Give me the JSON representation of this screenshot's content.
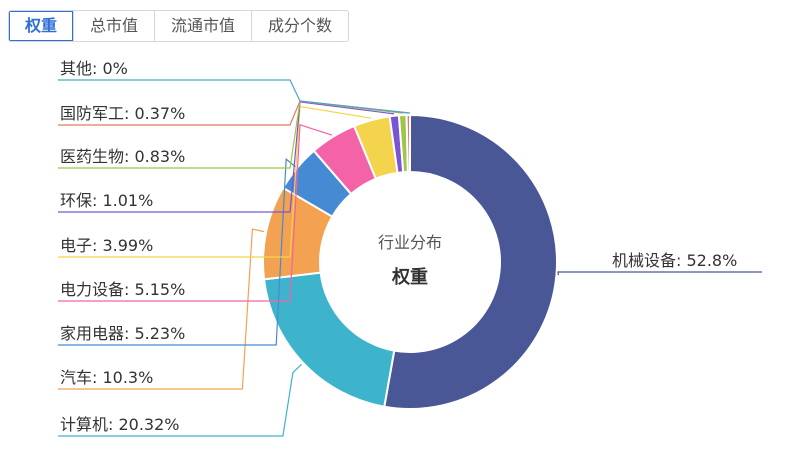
{
  "tabs": [
    {
      "label": "权重",
      "active": true
    },
    {
      "label": "总市值",
      "active": false
    },
    {
      "label": "流通市值",
      "active": false
    },
    {
      "label": "成分个数",
      "active": false
    }
  ],
  "chart_data": {
    "type": "pie",
    "center_title": "行业分布",
    "center_subtitle": "权重",
    "slices": [
      {
        "name": "机械设备",
        "value": 52.8,
        "label": "机械设备: 52.8%",
        "color": "#4a5797"
      },
      {
        "name": "计算机",
        "value": 20.32,
        "label": "计算机: 20.32%",
        "color": "#3eb3cc"
      },
      {
        "name": "汽车",
        "value": 10.3,
        "label": "汽车: 10.3%",
        "color": "#f2a250"
      },
      {
        "name": "家用电器",
        "value": 5.23,
        "label": "家用电器: 5.23%",
        "color": "#478ad4"
      },
      {
        "name": "电力设备",
        "value": 5.15,
        "label": "电力设备: 5.15%",
        "color": "#f462a8"
      },
      {
        "name": "电子",
        "value": 3.99,
        "label": "电子: 3.99%",
        "color": "#f3d44c"
      },
      {
        "name": "环保",
        "value": 1.01,
        "label": "环保: 1.01%",
        "color": "#7b54d6"
      },
      {
        "name": "医药生物",
        "value": 0.83,
        "label": "医药生物: 0.83%",
        "color": "#9ec74a"
      },
      {
        "name": "国防军工",
        "value": 0.37,
        "label": "国防军工: 0.37%",
        "color": "#e3796b"
      },
      {
        "name": "其他",
        "value": 0,
        "label": "其他: 0%",
        "color": "#4aa6cc"
      }
    ]
  }
}
